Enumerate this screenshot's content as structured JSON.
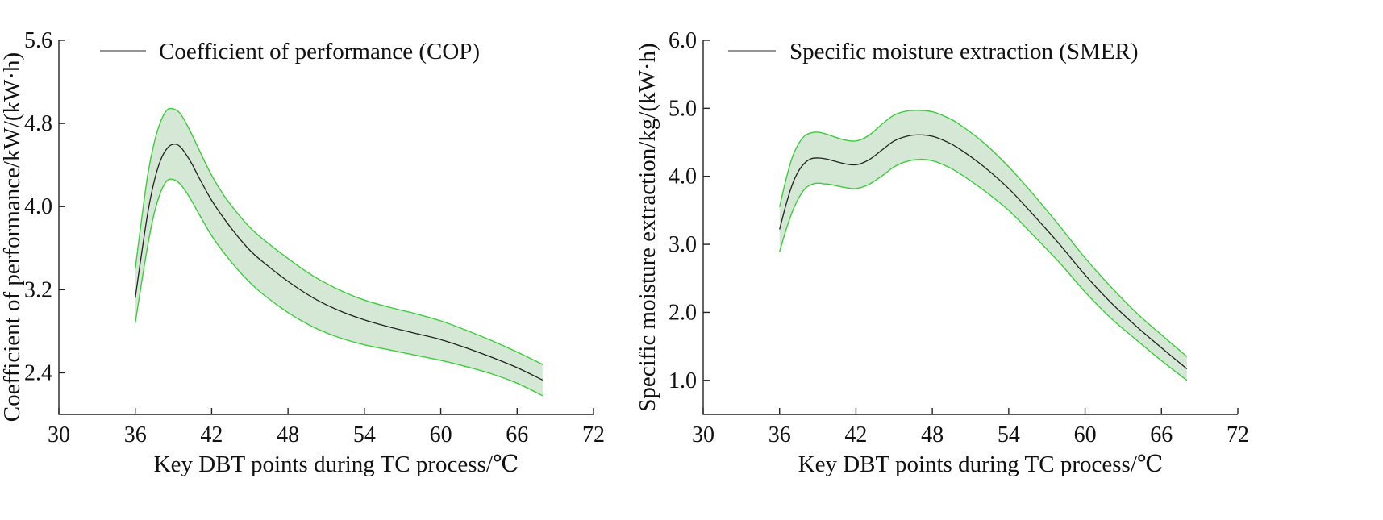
{
  "chart_data": [
    {
      "type": "line",
      "xlabel": "Key DBT points during TC process/℃",
      "ylabel": "Coefficient of performance/kW/(kW·h)",
      "xlim": [
        30,
        72
      ],
      "ylim": [
        2.0,
        5.6
      ],
      "x_ticks": [
        "30",
        "36",
        "42",
        "48",
        "54",
        "60",
        "66",
        "72"
      ],
      "y_ticks": [
        "2.4",
        "3.2",
        "4.0",
        "4.8",
        "5.6"
      ],
      "grid": false,
      "legend_position": "top-left",
      "band_color": "#2e8b2e",
      "band_edge_color": "#3ccd3c",
      "line_color": "#222222",
      "series": [
        {
          "name": "Coefficient of performance (COP)",
          "x": [
            36,
            36.5,
            37,
            37.5,
            38,
            38.5,
            39,
            39.5,
            40,
            40.5,
            41,
            42,
            43,
            44,
            45,
            46,
            48,
            50,
            52,
            54,
            56,
            58,
            60,
            62,
            64,
            66,
            68
          ],
          "y": [
            3.12,
            3.55,
            3.95,
            4.25,
            4.45,
            4.56,
            4.6,
            4.58,
            4.5,
            4.4,
            4.28,
            4.06,
            3.88,
            3.72,
            3.58,
            3.47,
            3.28,
            3.12,
            3.0,
            2.91,
            2.84,
            2.78,
            2.72,
            2.64,
            2.55,
            2.45,
            2.33
          ],
          "upper": [
            3.4,
            3.88,
            4.32,
            4.62,
            4.82,
            4.93,
            4.94,
            4.9,
            4.8,
            4.68,
            4.55,
            4.3,
            4.1,
            3.94,
            3.8,
            3.69,
            3.5,
            3.33,
            3.2,
            3.1,
            3.03,
            2.97,
            2.9,
            2.81,
            2.71,
            2.6,
            2.48
          ],
          "lower": [
            2.88,
            3.27,
            3.64,
            3.94,
            4.14,
            4.25,
            4.26,
            4.22,
            4.14,
            4.04,
            3.93,
            3.72,
            3.55,
            3.4,
            3.27,
            3.16,
            2.98,
            2.84,
            2.74,
            2.67,
            2.62,
            2.57,
            2.52,
            2.46,
            2.39,
            2.3,
            2.18
          ]
        }
      ]
    },
    {
      "type": "line",
      "xlabel": "Key DBT points during TC process/℃",
      "ylabel": "Specific moisture extraction/kg/(kW·h)",
      "xlim": [
        30,
        72
      ],
      "ylim": [
        0.5,
        6.0
      ],
      "x_ticks": [
        "30",
        "36",
        "42",
        "48",
        "54",
        "60",
        "66",
        "72"
      ],
      "y_ticks": [
        "1.0",
        "2.0",
        "3.0",
        "4.0",
        "5.0",
        "6.0"
      ],
      "grid": false,
      "legend_position": "top-left",
      "band_color": "#2e8b2e",
      "band_edge_color": "#3ccd3c",
      "line_color": "#222222",
      "series": [
        {
          "name": "Specific moisture extraction (SMER)",
          "x": [
            36,
            36.5,
            37,
            37.5,
            38,
            38.5,
            39,
            39.5,
            40,
            41,
            42,
            43,
            44,
            45,
            46,
            47,
            48,
            49,
            50,
            52,
            54,
            56,
            58,
            60,
            62,
            64,
            66,
            68
          ],
          "y": [
            3.22,
            3.58,
            3.88,
            4.08,
            4.2,
            4.26,
            4.27,
            4.26,
            4.24,
            4.19,
            4.17,
            4.24,
            4.38,
            4.52,
            4.59,
            4.61,
            4.59,
            4.52,
            4.42,
            4.15,
            3.82,
            3.42,
            3.0,
            2.55,
            2.15,
            1.8,
            1.48,
            1.17
          ],
          "upper": [
            3.55,
            3.95,
            4.28,
            4.48,
            4.6,
            4.64,
            4.65,
            4.63,
            4.6,
            4.54,
            4.52,
            4.6,
            4.76,
            4.9,
            4.96,
            4.97,
            4.95,
            4.88,
            4.78,
            4.5,
            4.14,
            3.72,
            3.27,
            2.8,
            2.38,
            2.0,
            1.67,
            1.35
          ],
          "lower": [
            2.89,
            3.21,
            3.48,
            3.68,
            3.82,
            3.88,
            3.9,
            3.89,
            3.88,
            3.84,
            3.82,
            3.88,
            4.0,
            4.14,
            4.22,
            4.25,
            4.23,
            4.16,
            4.06,
            3.8,
            3.5,
            3.12,
            2.73,
            2.3,
            1.92,
            1.6,
            1.29,
            1.0
          ]
        }
      ]
    }
  ]
}
